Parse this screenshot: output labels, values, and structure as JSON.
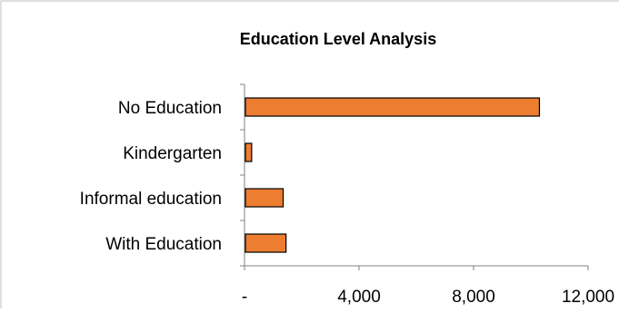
{
  "chart_data": {
    "type": "bar",
    "orientation": "horizontal",
    "title": "Education Level Analysis",
    "categories": [
      "No Education",
      "Kindergarten",
      "Informal education",
      "With Education"
    ],
    "values": [
      10300,
      250,
      1350,
      1450
    ],
    "xlim": [
      0,
      12000
    ],
    "xticks": [
      0,
      4000,
      8000,
      12000
    ],
    "xtick_labels": [
      "-",
      "4,000",
      "8,000",
      "12,000"
    ],
    "grid": false,
    "legend": "none",
    "bar_color": "#ED7D31",
    "bar_edge_color": "#000000"
  }
}
